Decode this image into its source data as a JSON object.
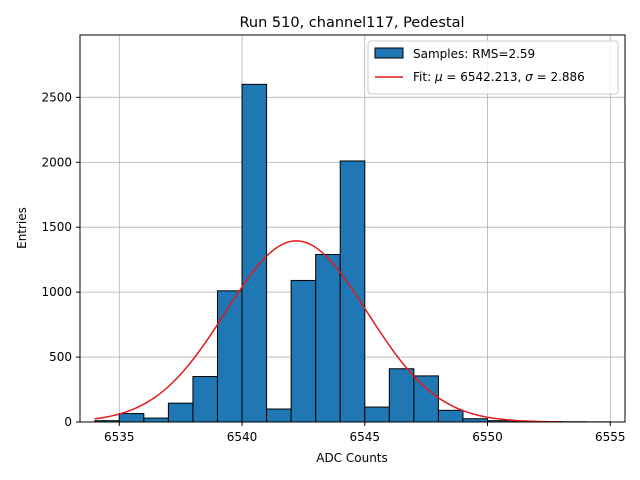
{
  "chart_data": {
    "type": "bar",
    "title": "Run 510, channel117, Pedestal",
    "xlabel": "ADC Counts",
    "ylabel": "Entries",
    "xlim": [
      6533.4,
      6555.6
    ],
    "ylim": [
      0,
      2980
    ],
    "xticks": [
      6535,
      6540,
      6545,
      6550,
      6555
    ],
    "yticks": [
      0,
      500,
      1000,
      1500,
      2000,
      2500
    ],
    "grid": true,
    "legend_position": "top-right",
    "histogram": {
      "name": "Samples: RMS=2.59",
      "color": "#1f77b4",
      "edge_color": "#000000",
      "bin_edges": [
        6534,
        6535,
        6536,
        6537,
        6538,
        6539,
        6540,
        6541,
        6542,
        6543,
        6544,
        6545,
        6546,
        6547,
        6548,
        6549,
        6550,
        6551,
        6552,
        6553,
        6554,
        6555
      ],
      "counts": [
        10,
        65,
        30,
        145,
        350,
        1010,
        2600,
        100,
        1090,
        1290,
        2010,
        115,
        410,
        355,
        90,
        25,
        10,
        5,
        3,
        2,
        1
      ]
    },
    "fit": {
      "name_prefix": "Fit: ",
      "mu_symbol": "μ",
      "mu_text": " = 6542.213, ",
      "sigma_symbol": "σ",
      "sigma_text": " = 2.886",
      "color": "#e31a1c",
      "mu": 6542.213,
      "sigma": 2.886,
      "amplitude": 1395,
      "x_range": [
        6534,
        6553
      ]
    }
  }
}
